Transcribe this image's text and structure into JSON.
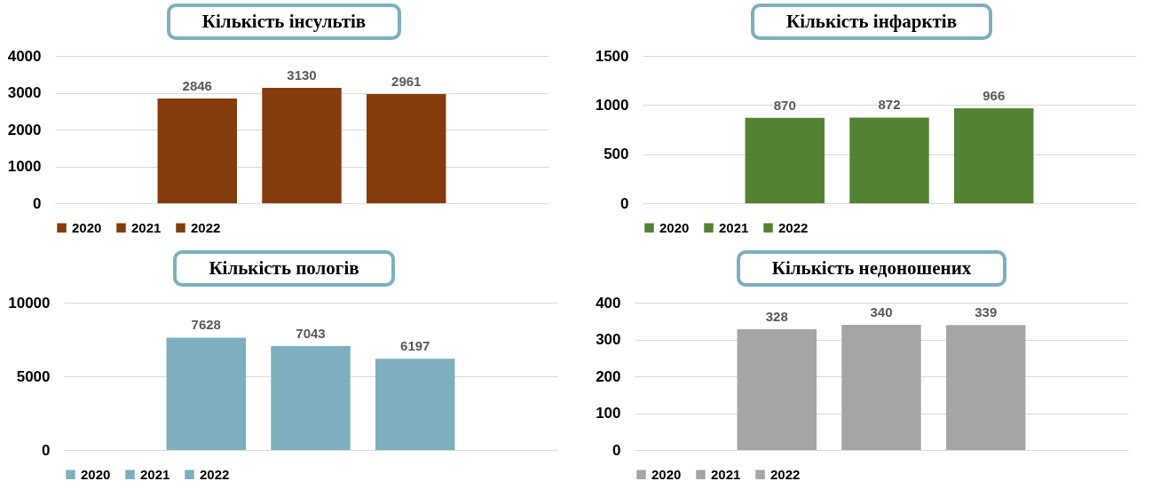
{
  "chart_data": [
    {
      "type": "bar",
      "title": "Кількість інсультів",
      "categories": [
        null
      ],
      "series": [
        {
          "name": "2020",
          "color": "#843c0c",
          "values": [
            2846
          ]
        },
        {
          "name": "2021",
          "color": "#843c0c",
          "values": [
            3130
          ]
        },
        {
          "name": "2022",
          "color": "#843c0c",
          "values": [
            2961
          ]
        }
      ],
      "ylim": [
        0,
        4000
      ],
      "yticks": [
        0,
        1000,
        2000,
        3000,
        4000
      ],
      "grid": "y",
      "legend": "bottom",
      "data_labels": true,
      "tick_labels": "y"
    },
    {
      "type": "bar",
      "title": "Кількість інфарктів",
      "categories": [
        null
      ],
      "series": [
        {
          "name": "2020",
          "color": "#548235",
          "values": [
            870
          ]
        },
        {
          "name": "2021",
          "color": "#548235",
          "values": [
            872
          ]
        },
        {
          "name": "2022",
          "color": "#548235",
          "values": [
            966
          ]
        }
      ],
      "ylim": [
        0,
        1500
      ],
      "yticks": [
        0,
        500,
        1000,
        1500
      ],
      "grid": "y",
      "legend": "bottom",
      "data_labels": true,
      "tick_labels": "y"
    },
    {
      "type": "bar",
      "title": "Кількість пологів",
      "categories": [
        null
      ],
      "series": [
        {
          "name": "2020",
          "color": "#7eafbe",
          "values": [
            7628
          ]
        },
        {
          "name": "2021",
          "color": "#7eafbe",
          "values": [
            7043
          ]
        },
        {
          "name": "2022",
          "color": "#7eafbe",
          "values": [
            6197
          ]
        }
      ],
      "ylim": [
        0,
        10000
      ],
      "yticks": [
        0,
        5000,
        10000
      ],
      "grid": "y",
      "legend": "bottom",
      "data_labels": true,
      "tick_labels": "y"
    },
    {
      "type": "bar",
      "title": "Кількість недоношених",
      "categories": [
        null
      ],
      "series": [
        {
          "name": "2020",
          "color": "#a5a5a5",
          "values": [
            328
          ]
        },
        {
          "name": "2021",
          "color": "#a5a5a5",
          "values": [
            340
          ]
        },
        {
          "name": "2022",
          "color": "#a5a5a5",
          "values": [
            339
          ]
        }
      ],
      "ylim": [
        0,
        400
      ],
      "yticks": [
        0,
        100,
        200,
        300,
        400
      ],
      "grid": "y",
      "legend": "bottom",
      "data_labels": true,
      "tick_labels": "y"
    }
  ]
}
